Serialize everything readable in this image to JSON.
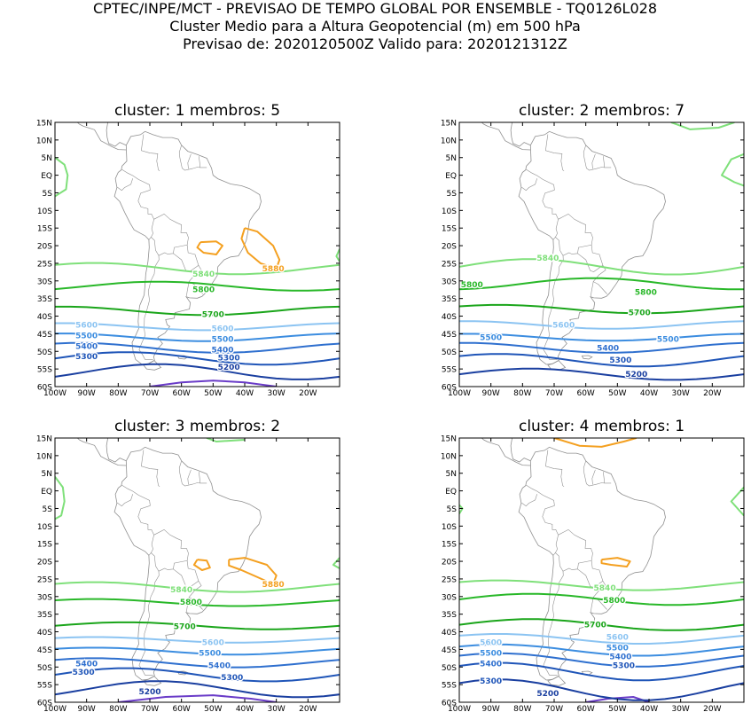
{
  "header": {
    "line1": "CPTEC/INPE/MCT - PREVISAO DE TEMPO GLOBAL POR ENSEMBLE - TQ0126L028",
    "line2": "Cluster Medio para a Altura Geopotencial (m) em 500 hPa",
    "line3": "Previsao de: 2020120500Z    Valido para: 2020121312Z"
  },
  "colors": {
    "c5880": "#f4a020",
    "c5840": "#7fe07a",
    "c5800": "#29b829",
    "c5700": "#1aa51a",
    "c5600": "#8cc4f2",
    "c5500": "#3c8de0",
    "c5400": "#2f70cf",
    "c5300": "#1f55b8",
    "c5200": "#1a3fa0",
    "c5100": "#6a3cc8",
    "coast": "#909090"
  },
  "chart_data": [
    {
      "type": "contour-map",
      "title": "cluster: 1   membros: 5",
      "variable": "geopotential height 500 hPa (m)",
      "lon_range": [
        -100,
        -10
      ],
      "lat_range": [
        -60,
        15
      ],
      "xticks": [
        "100W",
        "90W",
        "80W",
        "70W",
        "60W",
        "50W",
        "40W",
        "30W",
        "20W"
      ],
      "yticks": [
        "15N",
        "10N",
        "5N",
        "EQ",
        "5S",
        "10S",
        "15S",
        "20S",
        "25S",
        "30S",
        "35S",
        "40S",
        "45S",
        "50S",
        "55S",
        "60S"
      ],
      "levels": [
        {
          "level": 5880,
          "label": "5880",
          "label_pos": [
            -31,
            -26.5
          ]
        },
        {
          "level": 5840,
          "label": "5840",
          "label_pos": [
            -53,
            -28
          ]
        },
        {
          "level": 5800,
          "label": "5800",
          "label_pos": [
            -53,
            -32.5
          ]
        },
        {
          "level": 5700,
          "label": "5700",
          "label_pos": [
            -50,
            -39.5
          ]
        },
        {
          "level": 5600,
          "label": "5600",
          "label_pos": [
            -90,
            -42.5
          ],
          "label2_pos": [
            -47,
            -43.5
          ]
        },
        {
          "level": 5500,
          "label": "5500",
          "label_pos": [
            -90,
            -45.5
          ],
          "label2_pos": [
            -47,
            -46.5
          ]
        },
        {
          "level": 5400,
          "label": "5400",
          "label_pos": [
            -90,
            -48.5
          ],
          "label2_pos": [
            -47,
            -49.5
          ]
        },
        {
          "level": 5300,
          "label": "5300",
          "label_pos": [
            -90,
            -51.5
          ],
          "label2_pos": [
            -45,
            -51.8
          ]
        },
        {
          "level": 5200,
          "label": "5200",
          "label_pos": [
            -45,
            -54.5
          ]
        }
      ]
    },
    {
      "type": "contour-map",
      "title": "cluster: 2   membros: 7",
      "variable": "geopotential height 500 hPa (m)",
      "lon_range": [
        -100,
        -10
      ],
      "lat_range": [
        -60,
        15
      ],
      "xticks": [
        "100W",
        "90W",
        "80W",
        "70W",
        "60W",
        "50W",
        "40W",
        "30W",
        "20W"
      ],
      "yticks": [
        "15N",
        "10N",
        "5N",
        "EQ",
        "5S",
        "10S",
        "15S",
        "20S",
        "25S",
        "30S",
        "35S",
        "40S",
        "45S",
        "50S",
        "55S",
        "60S"
      ],
      "levels": [
        {
          "level": 5840,
          "label": "5840",
          "label_pos": [
            -72,
            -23.5
          ]
        },
        {
          "level": 5800,
          "label": "5800",
          "label_pos": [
            -96,
            -31
          ],
          "label2_pos": [
            -41,
            -33.2
          ]
        },
        {
          "level": 5700,
          "label": "5700",
          "label_pos": [
            -43,
            -39
          ]
        },
        {
          "level": 5600,
          "label": "5600",
          "label_pos": [
            -67,
            -42.5
          ]
        },
        {
          "level": 5500,
          "label": "5500",
          "label_pos": [
            -90,
            -46
          ],
          "label2_pos": [
            -34,
            -46.5
          ]
        },
        {
          "level": 5400,
          "label": "5400",
          "label_pos": [
            -53,
            -49
          ]
        },
        {
          "level": 5300,
          "label": "5300",
          "label_pos": [
            -49,
            -52.5
          ]
        },
        {
          "level": 5200,
          "label": "5200",
          "label_pos": [
            -44,
            -56.5
          ]
        }
      ]
    },
    {
      "type": "contour-map",
      "title": "cluster: 3   membros: 2",
      "variable": "geopotential height 500 hPa (m)",
      "lon_range": [
        -100,
        -10
      ],
      "lat_range": [
        -60,
        15
      ],
      "xticks": [
        "100W",
        "90W",
        "80W",
        "70W",
        "60W",
        "50W",
        "40W",
        "30W",
        "20W"
      ],
      "yticks": [
        "15N",
        "10N",
        "5N",
        "EQ",
        "5S",
        "10S",
        "15S",
        "20S",
        "25S",
        "30S",
        "35S",
        "40S",
        "45S",
        "50S",
        "55S",
        "60S"
      ],
      "levels": [
        {
          "level": 5880,
          "label": "5880",
          "label_pos": [
            -31,
            -26.5
          ]
        },
        {
          "level": 5840,
          "label": "5840",
          "label_pos": [
            -60,
            -28
          ]
        },
        {
          "level": 5800,
          "label": "5800",
          "label_pos": [
            -57,
            -31.5
          ]
        },
        {
          "level": 5700,
          "label": "5700",
          "label_pos": [
            -59,
            -38.5
          ]
        },
        {
          "level": 5600,
          "label": "5600",
          "label_pos": [
            -50,
            -43
          ]
        },
        {
          "level": 5500,
          "label": "5500",
          "label_pos": [
            -51,
            -46
          ]
        },
        {
          "level": 5400,
          "label": "5400",
          "label_pos": [
            -90,
            -49
          ],
          "label2_pos": [
            -48,
            -49.5
          ]
        },
        {
          "level": 5300,
          "label": "5300",
          "label_pos": [
            -91,
            -51.5
          ],
          "label2_pos": [
            -44,
            -53
          ]
        },
        {
          "level": 5200,
          "label": "5200",
          "label_pos": [
            -70,
            -57
          ]
        }
      ]
    },
    {
      "type": "contour-map",
      "title": "cluster: 4   membros: 1",
      "variable": "geopotential height 500 hPa (m)",
      "lon_range": [
        -100,
        -10
      ],
      "lat_range": [
        -60,
        15
      ],
      "xticks": [
        "100W",
        "90W",
        "80W",
        "70W",
        "60W",
        "50W",
        "40W",
        "30W",
        "20W"
      ],
      "yticks": [
        "15N",
        "10N",
        "5N",
        "EQ",
        "5S",
        "10S",
        "15S",
        "20S",
        "25S",
        "30S",
        "35S",
        "40S",
        "45S",
        "50S",
        "55S",
        "60S"
      ],
      "levels": [
        {
          "level": 5840,
          "label": "5840",
          "label_pos": [
            -54,
            -27.5
          ]
        },
        {
          "level": 5800,
          "label": "5800",
          "label_pos": [
            -51,
            -31
          ]
        },
        {
          "level": 5700,
          "label": "5700",
          "label_pos": [
            -57,
            -38
          ]
        },
        {
          "level": 5600,
          "label": "5600",
          "label_pos": [
            -90,
            -43
          ],
          "label2_pos": [
            -50,
            -41.5
          ]
        },
        {
          "level": 5500,
          "label": "5500",
          "label_pos": [
            -90,
            -46
          ],
          "label2_pos": [
            -50,
            -44.5
          ]
        },
        {
          "level": 5400,
          "label": "5400",
          "label_pos": [
            -90,
            -49
          ],
          "label2_pos": [
            -49,
            -47
          ]
        },
        {
          "level": 5300,
          "label": "5300",
          "label_pos": [
            -90,
            -54
          ],
          "label2_pos": [
            -48,
            -49.5
          ]
        },
        {
          "level": 5200,
          "label": "5200",
          "label_pos": [
            -72,
            -57.5
          ]
        }
      ]
    }
  ]
}
